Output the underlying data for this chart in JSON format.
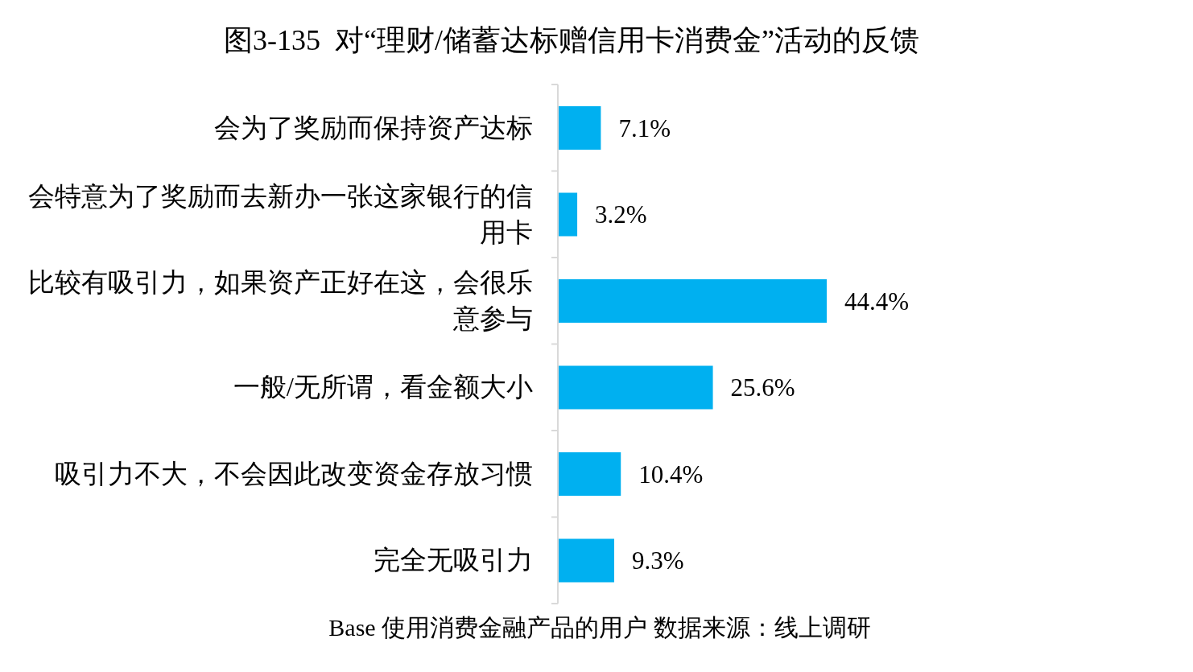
{
  "chart_data": {
    "type": "bar",
    "orientation": "horizontal",
    "title": "图3-135  对“理财/储蓄达标赠信用卡消费金”活动的反馈",
    "categories": [
      "会为了奖励而保持资产达标",
      "会特意为了奖励而去新办一张这家银行的信用卡",
      "比较有吸引力，如果资产正好在这，会很乐意参与",
      "一般/无所谓，看金额大小",
      "吸引力不大，不会因此改变资金存放习惯",
      "完全无吸引力"
    ],
    "values": [
      7.1,
      3.2,
      44.4,
      25.6,
      10.4,
      9.3
    ],
    "value_labels": [
      "7.1%",
      "3.2%",
      "44.4%",
      "25.6%",
      "10.4%",
      "9.3%"
    ],
    "color": "#00b0f0",
    "tick_labels": "y",
    "annotations": [
      "Base 使用消费金融产品的用户 数据来源：线上调研"
    ]
  }
}
